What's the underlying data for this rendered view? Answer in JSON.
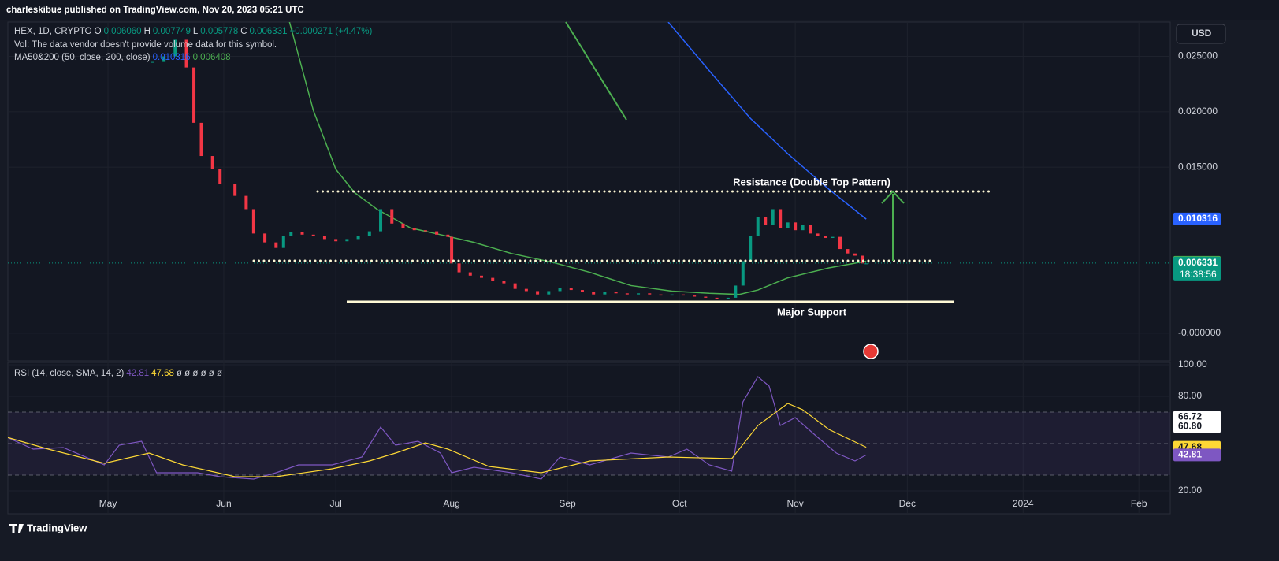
{
  "header": {
    "publisher": "charleskibue published on TradingView.com, Nov 20, 2023 05:21 UTC"
  },
  "legend": {
    "symbol": "HEX, 1D, CRYPTO",
    "ohlc": [
      {
        "key": "O",
        "value": "0.006060"
      },
      {
        "key": "H",
        "value": "0.007749"
      },
      {
        "key": "L",
        "value": "0.005778"
      },
      {
        "key": "C",
        "value": "0.006331"
      }
    ],
    "change": "+0.000271 (+4.47%)",
    "vol": "Vol: The data vendor doesn't provide volume data for this symbol.",
    "ma_label": "MA50&200 (50, close, 200, close)",
    "ma_values": [
      "0.010316",
      "0.006408"
    ],
    "rsi_label": "RSI (14, close, SMA, 14, 2)",
    "rsi_values": [
      "42.81",
      "47.68"
    ],
    "rsi_extra": "ø ø ø ø ø ø"
  },
  "currency": "USD",
  "footer": "TradingView",
  "chart_data": {
    "type": "candlestick",
    "x": [
      12,
      15,
      18,
      21,
      23,
      25,
      28,
      30,
      34,
      37,
      39,
      42,
      45,
      47,
      49,
      52,
      55,
      58,
      61,
      64,
      67,
      70,
      73,
      76,
      79,
      82,
      85,
      88,
      91,
      92,
      94,
      97,
      100,
      103,
      106,
      109,
      112,
      115,
      118,
      121,
      124,
      127,
      130,
      133,
      136,
      139,
      142,
      145,
      148,
      151,
      154,
      157,
      160,
      163,
      166,
      168,
      170,
      172,
      174,
      176,
      178,
      180,
      182,
      184,
      186,
      188,
      190,
      192,
      194,
      196,
      198,
      200,
      202,
      203
    ],
    "close": [
      0.0245,
      0.025,
      0.0265,
      0.024,
      0.019,
      0.016,
      0.0148,
      0.0135,
      0.0124,
      0.0112,
      0.009,
      0.0082,
      0.0077,
      0.0088,
      0.0091,
      0.0089,
      0.0088,
      0.0085,
      0.0083,
      0.0085,
      0.0088,
      0.0092,
      0.0112,
      0.0099,
      0.0095,
      0.0093,
      0.0092,
      0.0089,
      0.0087,
      0.0063,
      0.0055,
      0.0052,
      0.005,
      0.0047,
      0.0045,
      0.004,
      0.0038,
      0.0035,
      0.0038,
      0.0041,
      0.0039,
      0.0037,
      0.0035,
      0.0037,
      0.0036,
      0.0035,
      0.0036,
      0.0035,
      0.0034,
      0.0035,
      0.0034,
      0.0033,
      0.0032,
      0.0031,
      0.0032,
      0.0043,
      0.0065,
      0.0088,
      0.0105,
      0.0098,
      0.0112,
      0.0095,
      0.01,
      0.0093,
      0.0098,
      0.009,
      0.0088,
      0.0086,
      0.0087,
      0.0076,
      0.0072,
      0.007,
      0.0063,
      0.0063
    ],
    "up_color": "#089981",
    "down_color": "#f23645",
    "ma": [
      {
        "color": "#4caf50",
        "x": [
          47,
          55,
          61,
          66,
          72,
          81,
          89,
          98,
          108,
          119,
          129,
          140,
          151,
          161,
          169,
          174,
          182,
          193,
          203
        ],
        "values": [
          0.0301,
          0.0201,
          0.0148,
          0.0127,
          0.0112,
          0.0095,
          0.0089,
          0.0082,
          0.0072,
          0.0064,
          0.0055,
          0.0043,
          0.0038,
          0.0036,
          0.0035,
          0.0039,
          0.005,
          0.0059,
          0.0065
        ]
      },
      {
        "color": "#2962ff",
        "x": [
          150,
          161,
          172,
          182,
          193,
          203
        ],
        "values": [
          0.0281,
          0.0237,
          0.0194,
          0.0162,
          0.013,
          0.0103
        ]
      }
    ],
    "xlim": [
      -26.8,
      284.4
    ],
    "xticks": [
      {
        "value": 0,
        "label": "May"
      },
      {
        "value": 31,
        "label": "Jun"
      },
      {
        "value": 61,
        "label": "Jul"
      },
      {
        "value": 92,
        "label": "Aug"
      },
      {
        "value": 123,
        "label": "Sep"
      },
      {
        "value": 153,
        "label": "Oct"
      },
      {
        "value": 184,
        "label": "Nov"
      },
      {
        "value": 214,
        "label": "Dec"
      },
      {
        "value": 245,
        "label": "2024"
      },
      {
        "value": 276,
        "label": "Feb"
      }
    ],
    "ylim": [
      -0.0025,
      0.0281
    ],
    "yticks": [
      {
        "value": 0.025,
        "label": "0.025000"
      },
      {
        "value": 0.02,
        "label": "0.020000"
      },
      {
        "value": 0.015,
        "label": "0.015000"
      },
      {
        "value": 0,
        "label": "-0.000000"
      }
    ],
    "price_badges": [
      {
        "value": 0.010316,
        "label": "0.010316",
        "color": "#2962ff"
      },
      {
        "value": 0.006408,
        "label": "0.006408",
        "color": "#4caf50"
      },
      {
        "value": 0.006331,
        "label": "0.006331",
        "color": "#089981",
        "timer": "18:38:56"
      }
    ],
    "levels": {
      "resistance": 0.0128,
      "support": 0.00654,
      "major_support": 0.00284
    },
    "annotations": {
      "resistance": "Resistance (Double Top Pattern)",
      "major_support": "Major Support"
    },
    "rsi": {
      "color": "#7e57c2",
      "x": [
        -27,
        -20,
        -12,
        -1,
        3,
        9,
        13,
        24,
        30,
        39,
        45,
        51,
        60,
        68,
        73,
        77,
        83,
        89,
        92,
        98,
        108,
        116,
        121,
        129,
        140,
        150,
        155,
        161,
        167,
        170,
        174,
        177,
        180,
        184,
        190,
        195,
        200,
        203
      ],
      "values": [
        54,
        46.5,
        47.5,
        36.5,
        49,
        51.5,
        31.5,
        31.5,
        29,
        27.5,
        31.5,
        36.5,
        36.5,
        41.5,
        60.5,
        49,
        51.5,
        44,
        31.5,
        35,
        31.5,
        27.5,
        41.5,
        36.5,
        44,
        41.5,
        46.5,
        36.5,
        32.5,
        76.5,
        92.5,
        86.5,
        61.5,
        66.5,
        54,
        44,
        39,
        42.81
      ]
    },
    "rsi_sma": {
      "color": "#fdd835",
      "x": [
        -27,
        -16,
        -1,
        11,
        20,
        34,
        45,
        60,
        70,
        77,
        85,
        91,
        102,
        116,
        129,
        150,
        167,
        174,
        182,
        186,
        193,
        203
      ],
      "values": [
        54,
        46.5,
        37.5,
        44,
        36.5,
        29,
        29,
        34,
        39,
        44,
        50.5,
        46.5,
        35.5,
        31.5,
        39,
        41.5,
        40.5,
        61.5,
        75.5,
        71.5,
        59,
        47.68
      ]
    },
    "rsi_ylim": [
      5.5,
      101.5
    ],
    "rsi_yticks": [
      {
        "value": 100,
        "label": "100.00"
      },
      {
        "value": 80,
        "label": "80.00"
      },
      {
        "value": 20,
        "label": "20.00"
      }
    ],
    "rsi_bands": [
      70,
      50,
      30
    ],
    "rsi_badges": [
      {
        "value": 66.72,
        "label": "66.72",
        "color": "#ffffff"
      },
      {
        "value": 60.8,
        "label": "60.80",
        "color": "#ffffff"
      },
      {
        "value": 47.68,
        "label": "47.68",
        "color": "#fdd835"
      },
      {
        "value": 42.81,
        "label": "42.81",
        "color": "#7e57c2"
      }
    ]
  }
}
